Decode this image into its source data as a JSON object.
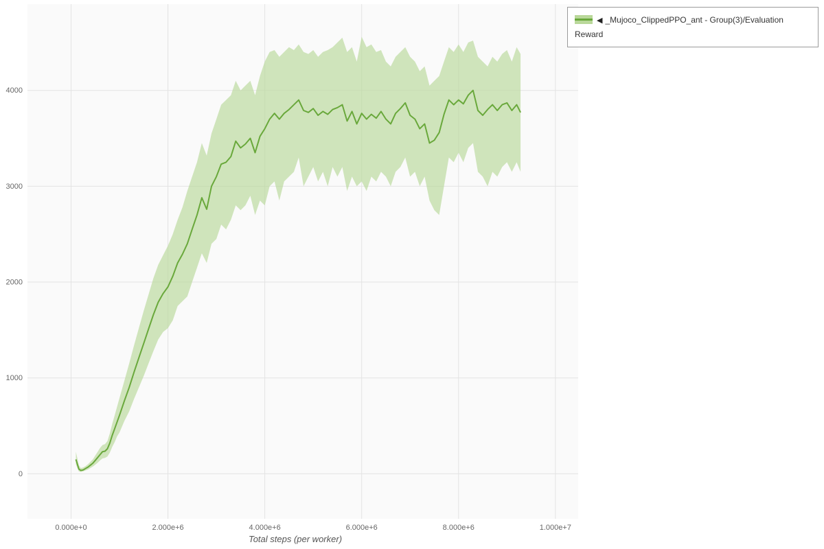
{
  "chart_data": {
    "type": "line",
    "title": "",
    "xlabel": "Total steps (per worker)",
    "ylabel": "",
    "grid": true,
    "legend_position": "top-right",
    "xlim": [
      -900000,
      10470000
    ],
    "ylim": [
      -470,
      4900
    ],
    "x_ticks": {
      "values": [
        0,
        2000000,
        4000000,
        6000000,
        8000000,
        10000000
      ],
      "labels": [
        "0.000e+0",
        "2.000e+6",
        "4.000e+6",
        "6.000e+6",
        "8.000e+6",
        "1.000e+7"
      ]
    },
    "y_ticks": {
      "values": [
        0,
        1000,
        2000,
        3000,
        4000
      ],
      "labels": [
        "0",
        "1000",
        "2000",
        "3000",
        "4000"
      ]
    },
    "series": [
      {
        "name": "_Mujoco_ClippedPPO_ant - Group(3)/Evaluation Reward",
        "line_color": "#69a83b",
        "band_color": "#b9d89a",
        "band_opacity": 0.65,
        "x_e6": [
          0.1,
          0.13,
          0.16,
          0.2,
          0.25,
          0.3,
          0.35,
          0.4,
          0.45,
          0.5,
          0.55,
          0.6,
          0.65,
          0.7,
          0.75,
          0.8,
          0.85,
          0.9,
          0.95,
          1.0,
          1.1,
          1.2,
          1.3,
          1.4,
          1.5,
          1.6,
          1.7,
          1.8,
          1.9,
          2.0,
          2.1,
          2.2,
          2.3,
          2.4,
          2.5,
          2.6,
          2.7,
          2.8,
          2.9,
          3.0,
          3.1,
          3.2,
          3.3,
          3.4,
          3.5,
          3.6,
          3.7,
          3.8,
          3.9,
          4.0,
          4.1,
          4.2,
          4.3,
          4.4,
          4.5,
          4.6,
          4.7,
          4.8,
          4.9,
          5.0,
          5.1,
          5.2,
          5.3,
          5.4,
          5.5,
          5.6,
          5.7,
          5.8,
          5.9,
          6.0,
          6.1,
          6.2,
          6.3,
          6.4,
          6.5,
          6.6,
          6.7,
          6.8,
          6.9,
          7.0,
          7.1,
          7.2,
          7.3,
          7.4,
          7.5,
          7.6,
          7.7,
          7.8,
          7.9,
          8.0,
          8.1,
          8.2,
          8.3,
          8.4,
          8.5,
          8.6,
          8.7,
          8.8,
          8.9,
          9.0,
          9.1,
          9.2,
          9.28
        ],
        "mean": [
          150,
          100,
          50,
          35,
          40,
          55,
          70,
          90,
          110,
          140,
          170,
          200,
          230,
          235,
          260,
          320,
          400,
          470,
          540,
          610,
          760,
          900,
          1060,
          1210,
          1360,
          1510,
          1660,
          1790,
          1880,
          1950,
          2060,
          2200,
          2290,
          2400,
          2550,
          2700,
          2880,
          2760,
          3000,
          3100,
          3230,
          3250,
          3310,
          3470,
          3400,
          3440,
          3500,
          3350,
          3520,
          3600,
          3700,
          3760,
          3700,
          3760,
          3800,
          3850,
          3900,
          3790,
          3770,
          3810,
          3740,
          3780,
          3750,
          3800,
          3820,
          3850,
          3680,
          3780,
          3650,
          3760,
          3700,
          3750,
          3710,
          3780,
          3700,
          3650,
          3760,
          3810,
          3870,
          3740,
          3700,
          3600,
          3650,
          3450,
          3480,
          3560,
          3750,
          3900,
          3850,
          3900,
          3860,
          3950,
          4000,
          3790,
          3740,
          3800,
          3850,
          3790,
          3850,
          3870,
          3790,
          3850,
          3770
        ],
        "lower": [
          100,
          60,
          25,
          20,
          25,
          35,
          45,
          60,
          75,
          95,
          115,
          140,
          160,
          165,
          180,
          220,
          280,
          330,
          390,
          430,
          550,
          650,
          780,
          900,
          1020,
          1150,
          1280,
          1400,
          1480,
          1520,
          1600,
          1750,
          1800,
          1850,
          2000,
          2150,
          2300,
          2200,
          2400,
          2450,
          2600,
          2550,
          2650,
          2800,
          2750,
          2800,
          2900,
          2700,
          2850,
          2800,
          3000,
          3050,
          2850,
          3050,
          3100,
          3150,
          3300,
          3000,
          3100,
          3200,
          3050,
          3150,
          3000,
          3200,
          3100,
          3200,
          2950,
          3100,
          3000,
          3050,
          2950,
          3100,
          3050,
          3150,
          3100,
          3000,
          3150,
          3200,
          3300,
          3100,
          3150,
          3000,
          3100,
          2850,
          2750,
          2700,
          3000,
          3300,
          3250,
          3350,
          3250,
          3400,
          3450,
          3150,
          3100,
          3000,
          3150,
          3100,
          3200,
          3250,
          3150,
          3250,
          3150
        ],
        "upper": [
          230,
          160,
          90,
          60,
          65,
          80,
          100,
          125,
          150,
          190,
          230,
          270,
          300,
          310,
          340,
          420,
          520,
          610,
          700,
          790,
          970,
          1150,
          1340,
          1520,
          1700,
          1870,
          2040,
          2180,
          2280,
          2380,
          2500,
          2650,
          2780,
          2950,
          3100,
          3250,
          3450,
          3320,
          3550,
          3700,
          3850,
          3900,
          3950,
          4100,
          4000,
          4050,
          4100,
          3950,
          4150,
          4300,
          4400,
          4420,
          4350,
          4400,
          4450,
          4420,
          4480,
          4400,
          4380,
          4420,
          4350,
          4400,
          4420,
          4450,
          4500,
          4550,
          4400,
          4450,
          4300,
          4560,
          4450,
          4480,
          4400,
          4420,
          4300,
          4250,
          4350,
          4400,
          4450,
          4350,
          4300,
          4200,
          4250,
          4050,
          4100,
          4150,
          4300,
          4450,
          4400,
          4480,
          4400,
          4500,
          4520,
          4350,
          4300,
          4250,
          4350,
          4300,
          4380,
          4420,
          4300,
          4450,
          4380
        ]
      }
    ]
  },
  "legend": {
    "collapse_icon": "◀",
    "label": "_Mujoco_ClippedPPO_ant - Group(3)/Evaluation Reward"
  },
  "axes": {
    "x_title": "Total steps (per worker)"
  },
  "colors": {
    "plot_bg": "#fafafa",
    "grid": "#e3e3e3",
    "tick_text": "#666666",
    "line": "#69a83b",
    "band": "#b9d89a"
  }
}
